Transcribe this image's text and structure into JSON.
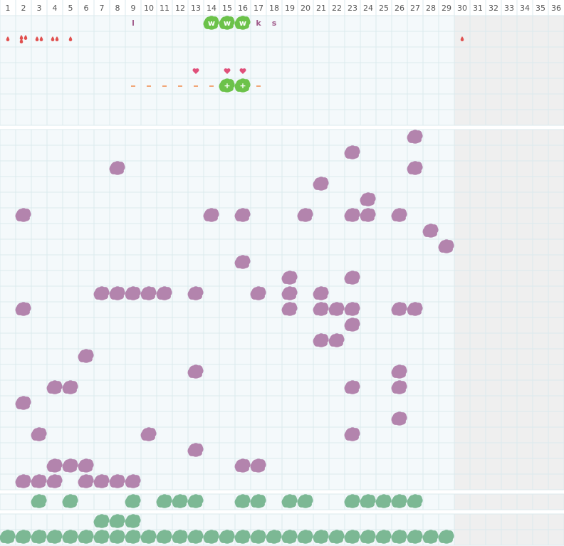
{
  "header": {
    "days": [
      1,
      2,
      3,
      4,
      5,
      6,
      7,
      8,
      9,
      10,
      11,
      12,
      13,
      14,
      15,
      16,
      17,
      18,
      19,
      20,
      21,
      22,
      23,
      24,
      25,
      26,
      27,
      28,
      29,
      30,
      31,
      32,
      33,
      34,
      35,
      36
    ]
  },
  "shaded_from": 30,
  "top": {
    "letters": [
      {
        "day": 9,
        "text": "l"
      },
      {
        "day": 14,
        "text": "w",
        "badge": true
      },
      {
        "day": 15,
        "text": "w",
        "badge": true
      },
      {
        "day": 16,
        "text": "w",
        "badge": true
      },
      {
        "day": 17,
        "text": "k"
      },
      {
        "day": 18,
        "text": "s"
      }
    ],
    "drops": [
      {
        "day": 1,
        "count": 1
      },
      {
        "day": 2,
        "count": 3
      },
      {
        "day": 3,
        "count": 2
      },
      {
        "day": 4,
        "count": 2
      },
      {
        "day": 5,
        "count": 1
      },
      {
        "day": 30,
        "count": 1
      }
    ],
    "hearts": [
      13,
      15,
      16
    ],
    "dashes": [
      9,
      10,
      11,
      12,
      13,
      14,
      17
    ],
    "plus": [
      {
        "day": 15,
        "text": "+"
      },
      {
        "day": 16,
        "text": "+"
      }
    ]
  },
  "main": {
    "rows": [
      [
        27
      ],
      [
        23
      ],
      [
        8,
        27
      ],
      [
        21
      ],
      [
        24
      ],
      [
        2,
        14,
        16,
        20,
        23,
        24,
        26
      ],
      [
        28
      ],
      [
        29
      ],
      [
        16
      ],
      [
        19,
        23
      ],
      [
        7,
        8,
        9,
        10,
        11,
        13,
        17,
        19,
        21
      ],
      [
        2,
        19,
        21,
        22,
        23,
        26,
        27
      ],
      [
        23
      ],
      [
        21,
        22
      ],
      [
        6
      ],
      [
        13,
        26
      ],
      [
        4,
        5,
        23,
        26
      ],
      [
        2
      ],
      [
        26
      ],
      [
        3,
        10,
        23
      ],
      [
        13
      ],
      [
        4,
        5,
        6,
        16,
        17
      ],
      [
        2,
        3,
        4,
        6,
        7,
        8,
        9
      ]
    ]
  },
  "green_rows": [
    [
      3,
      5,
      9,
      11,
      12,
      13,
      16,
      17,
      19,
      20,
      23,
      24,
      25,
      26,
      27
    ],
    [
      7,
      8,
      9
    ],
    [
      1,
      2,
      3,
      4,
      5,
      6,
      7,
      8,
      9,
      10,
      11,
      12,
      13,
      14,
      15,
      16,
      17,
      18,
      19,
      20,
      21,
      22,
      23,
      24,
      25,
      26,
      27,
      28,
      29
    ]
  ]
}
